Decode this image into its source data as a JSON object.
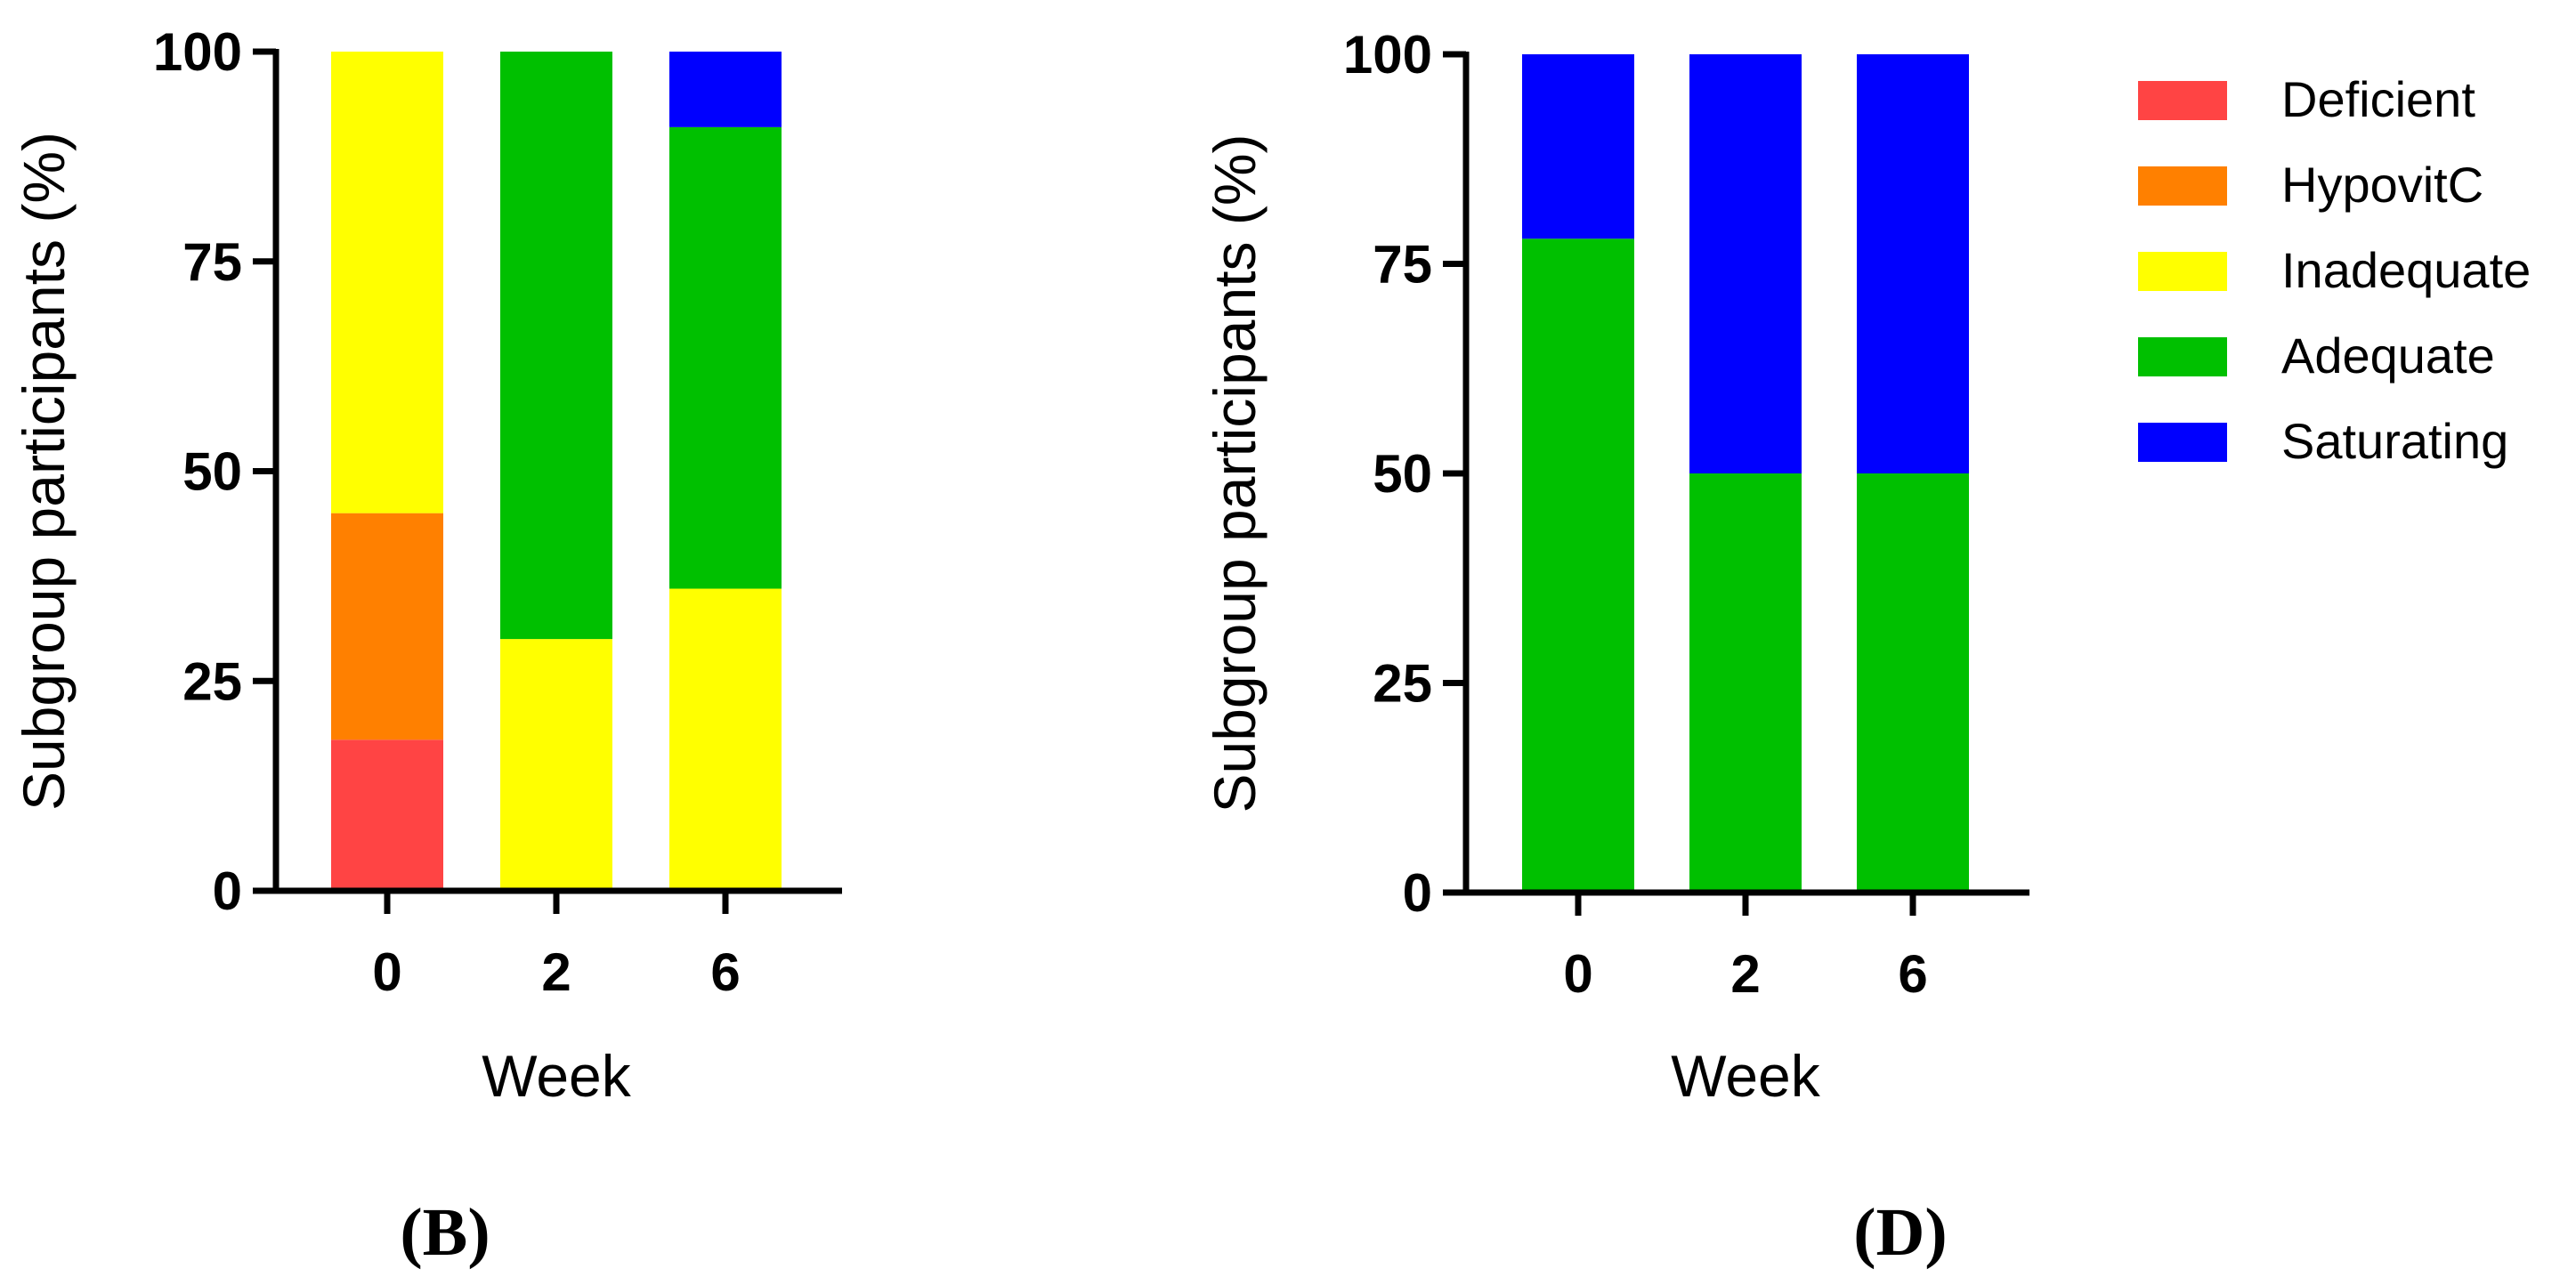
{
  "colors": {
    "Deficient": "#ff4444",
    "HypovitC": "#ff8000",
    "Inadequate": "#ffff00",
    "Adequate": "#00c000",
    "Saturating": "#0000ff"
  },
  "chart_data": [
    {
      "type": "bar",
      "stacked": true,
      "panel": "(B)",
      "categories": [
        "0",
        "2",
        "6"
      ],
      "xlabel": "Week",
      "ylabel": "Subgroup participants (%)",
      "ylim": [
        0,
        100
      ],
      "yticks": [
        "0",
        "25",
        "50",
        "75",
        "100"
      ],
      "series": [
        {
          "name": "Deficient",
          "values": [
            18,
            0,
            0
          ]
        },
        {
          "name": "HypovitC",
          "values": [
            27,
            0,
            0
          ]
        },
        {
          "name": "Inadequate",
          "values": [
            55,
            30,
            36
          ]
        },
        {
          "name": "Adequate",
          "values": [
            0,
            70,
            55
          ]
        },
        {
          "name": "Saturating",
          "values": [
            0,
            0,
            9
          ]
        }
      ]
    },
    {
      "type": "bar",
      "stacked": true,
      "panel": "(D)",
      "categories": [
        "0",
        "2",
        "6"
      ],
      "xlabel": "Week",
      "ylabel": "Subgroup participants (%)",
      "ylim": [
        0,
        100
      ],
      "yticks": [
        "0",
        "25",
        "50",
        "75",
        "100"
      ],
      "series": [
        {
          "name": "Deficient",
          "values": [
            0,
            0,
            0
          ]
        },
        {
          "name": "HypovitC",
          "values": [
            0,
            0,
            0
          ]
        },
        {
          "name": "Inadequate",
          "values": [
            0,
            0,
            0
          ]
        },
        {
          "name": "Adequate",
          "values": [
            78,
            50,
            50
          ]
        },
        {
          "name": "Saturating",
          "values": [
            22,
            50,
            50
          ]
        }
      ]
    }
  ],
  "legend": {
    "items": [
      "Deficient",
      "HypovitC",
      "Inadequate",
      "Adequate",
      "Saturating"
    ]
  }
}
